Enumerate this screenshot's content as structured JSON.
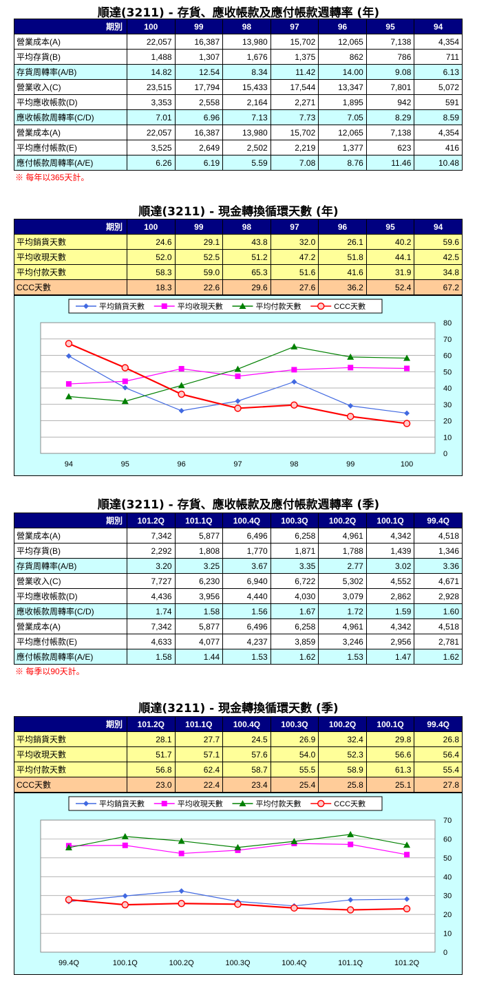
{
  "t1": {
    "title": "順達(3211) -  存貨、應收帳款及應付帳款週轉率 (年)",
    "header": [
      "期別",
      "100",
      "99",
      "98",
      "97",
      "96",
      "95",
      "94"
    ],
    "rows": [
      {
        "label": "營業成本(A)",
        "vals": [
          "22,057",
          "16,387",
          "13,980",
          "15,702",
          "12,065",
          "7,138",
          "4,354"
        ]
      },
      {
        "label": "平均存貨(B)",
        "vals": [
          "1,488",
          "1,307",
          "1,676",
          "1,375",
          "862",
          "786",
          "711"
        ]
      },
      {
        "label": "存貨周轉率(A/B)",
        "vals": [
          "14.82",
          "12.54",
          "8.34",
          "11.42",
          "14.00",
          "9.08",
          "6.13"
        ]
      },
      {
        "label": "營業收入(C)",
        "vals": [
          "23,515",
          "17,794",
          "15,433",
          "17,544",
          "13,347",
          "7,801",
          "5,072"
        ]
      },
      {
        "label": "平均應收帳款(D)",
        "vals": [
          "3,353",
          "2,558",
          "2,164",
          "2,271",
          "1,895",
          "942",
          "591"
        ]
      },
      {
        "label": "應收帳款周轉率(C/D)",
        "vals": [
          "7.01",
          "6.96",
          "7.13",
          "7.73",
          "7.05",
          "8.29",
          "8.59"
        ]
      },
      {
        "label": "營業成本(A)",
        "vals": [
          "22,057",
          "16,387",
          "13,980",
          "15,702",
          "12,065",
          "7,138",
          "4,354"
        ]
      },
      {
        "label": "平均應付帳款(E)",
        "vals": [
          "3,525",
          "2,649",
          "2,502",
          "2,219",
          "1,377",
          "623",
          "416"
        ]
      },
      {
        "label": "應付帳款周轉率(A/E)",
        "vals": [
          "6.26",
          "6.19",
          "5.59",
          "7.08",
          "8.76",
          "11.46",
          "10.48"
        ]
      }
    ],
    "note": "※ 每年以365天計。"
  },
  "t2": {
    "title": "順達(3211) -  現金轉換循環天數 (年)",
    "header": [
      "期別",
      "100",
      "99",
      "98",
      "97",
      "96",
      "95",
      "94"
    ],
    "rows": [
      {
        "label": "平均銷貨天數",
        "vals": [
          "24.6",
          "29.1",
          "43.8",
          "32.0",
          "26.1",
          "40.2",
          "59.6"
        ]
      },
      {
        "label": "平均收現天數",
        "vals": [
          "52.0",
          "52.5",
          "51.2",
          "47.2",
          "51.8",
          "44.1",
          "42.5"
        ]
      },
      {
        "label": "平均付款天數",
        "vals": [
          "58.3",
          "59.0",
          "65.3",
          "51.6",
          "41.6",
          "31.9",
          "34.8"
        ]
      },
      {
        "label": "CCC天數",
        "vals": [
          "18.3",
          "22.6",
          "29.6",
          "27.6",
          "36.2",
          "52.4",
          "67.2"
        ]
      }
    ]
  },
  "t3": {
    "title": "順達(3211) -  存貨、應收帳款及應付帳款週轉率 (季)",
    "header": [
      "期別",
      "101.2Q",
      "101.1Q",
      "100.4Q",
      "100.3Q",
      "100.2Q",
      "100.1Q",
      "99.4Q"
    ],
    "rows": [
      {
        "label": "營業成本(A)",
        "vals": [
          "7,342",
          "5,877",
          "6,496",
          "6,258",
          "4,961",
          "4,342",
          "4,518"
        ]
      },
      {
        "label": "平均存貨(B)",
        "vals": [
          "2,292",
          "1,808",
          "1,770",
          "1,871",
          "1,788",
          "1,439",
          "1,346"
        ]
      },
      {
        "label": "存貨周轉率(A/B)",
        "vals": [
          "3.20",
          "3.25",
          "3.67",
          "3.35",
          "2.77",
          "3.02",
          "3.36"
        ]
      },
      {
        "label": "營業收入(C)",
        "vals": [
          "7,727",
          "6,230",
          "6,940",
          "6,722",
          "5,302",
          "4,552",
          "4,671"
        ]
      },
      {
        "label": "平均應收帳款(D)",
        "vals": [
          "4,436",
          "3,956",
          "4,440",
          "4,030",
          "3,079",
          "2,862",
          "2,928"
        ]
      },
      {
        "label": "應收帳款周轉率(C/D)",
        "vals": [
          "1.74",
          "1.58",
          "1.56",
          "1.67",
          "1.72",
          "1.59",
          "1.60"
        ]
      },
      {
        "label": "營業成本(A)",
        "vals": [
          "7,342",
          "5,877",
          "6,496",
          "6,258",
          "4,961",
          "4,342",
          "4,518"
        ]
      },
      {
        "label": "平均應付帳款(E)",
        "vals": [
          "4,633",
          "4,077",
          "4,237",
          "3,859",
          "3,246",
          "2,956",
          "2,781"
        ]
      },
      {
        "label": "應付帳款周轉率(A/E)",
        "vals": [
          "1.58",
          "1.44",
          "1.53",
          "1.62",
          "1.53",
          "1.47",
          "1.62"
        ]
      }
    ],
    "note": "※ 每季以90天計。"
  },
  "t4": {
    "title": "順達(3211) -  現金轉換循環天數 (季)",
    "header": [
      "期別",
      "101.2Q",
      "101.1Q",
      "100.4Q",
      "100.3Q",
      "100.2Q",
      "100.1Q",
      "99.4Q"
    ],
    "rows": [
      {
        "label": "平均銷貨天數",
        "vals": [
          "28.1",
          "27.7",
          "24.5",
          "26.9",
          "32.4",
          "29.8",
          "26.8"
        ]
      },
      {
        "label": "平均收現天數",
        "vals": [
          "51.7",
          "57.1",
          "57.6",
          "54.0",
          "52.3",
          "56.6",
          "56.4"
        ]
      },
      {
        "label": "平均付款天數",
        "vals": [
          "56.8",
          "62.4",
          "58.7",
          "55.5",
          "58.9",
          "61.3",
          "55.4"
        ]
      },
      {
        "label": "CCC天數",
        "vals": [
          "23.0",
          "22.4",
          "23.4",
          "25.4",
          "25.8",
          "25.1",
          "27.8"
        ]
      }
    ]
  },
  "colors": {
    "header_bg": "#000080",
    "cyan": "#ccffff",
    "yellow": "#ffff99",
    "orange": "#ffcc99",
    "plot_bg": "#ccffff"
  },
  "chart_data": [
    {
      "type": "line",
      "categories": [
        "94",
        "95",
        "96",
        "97",
        "98",
        "99",
        "100"
      ],
      "ylim": [
        0,
        80
      ],
      "yticks": [
        "0",
        "10",
        "20",
        "30",
        "40",
        "50",
        "60",
        "70",
        "80"
      ],
      "grid": true,
      "legend": "top",
      "series": [
        {
          "name": "平均銷貨天數",
          "color": "#4169e1",
          "marker": "diamond",
          "values": [
            59.6,
            40.2,
            26.1,
            32.0,
            43.8,
            29.1,
            24.6
          ]
        },
        {
          "name": "平均收現天數",
          "color": "#ff00ff",
          "marker": "square",
          "values": [
            42.5,
            44.1,
            51.8,
            47.2,
            51.2,
            52.5,
            52.0
          ]
        },
        {
          "name": "平均付款天數",
          "color": "#008000",
          "marker": "triangle",
          "values": [
            34.8,
            31.9,
            41.6,
            51.6,
            65.3,
            59.0,
            58.3
          ]
        },
        {
          "name": "CCC天數",
          "color": "#ff0000",
          "marker": "circle",
          "values": [
            67.2,
            52.4,
            36.2,
            27.6,
            29.6,
            22.6,
            18.3
          ]
        }
      ]
    },
    {
      "type": "line",
      "categories": [
        "99.4Q",
        "100.1Q",
        "100.2Q",
        "100.3Q",
        "100.4Q",
        "101.1Q",
        "101.2Q"
      ],
      "ylim": [
        0,
        70
      ],
      "yticks": [
        "0",
        "10",
        "20",
        "30",
        "40",
        "50",
        "60",
        "70"
      ],
      "grid": true,
      "legend": "top",
      "series": [
        {
          "name": "平均銷貨天數",
          "color": "#4169e1",
          "marker": "diamond",
          "values": [
            26.8,
            29.8,
            32.4,
            26.9,
            24.5,
            27.7,
            28.1
          ]
        },
        {
          "name": "平均收現天數",
          "color": "#ff00ff",
          "marker": "square",
          "values": [
            56.4,
            56.6,
            52.3,
            54.0,
            57.6,
            57.1,
            51.7
          ]
        },
        {
          "name": "平均付款天數",
          "color": "#008000",
          "marker": "triangle",
          "values": [
            55.4,
            61.3,
            58.9,
            55.5,
            58.7,
            62.4,
            56.8
          ]
        },
        {
          "name": "CCC天數",
          "color": "#ff0000",
          "marker": "circle",
          "values": [
            27.8,
            25.1,
            25.8,
            25.4,
            23.4,
            22.4,
            23.0
          ]
        }
      ]
    }
  ]
}
